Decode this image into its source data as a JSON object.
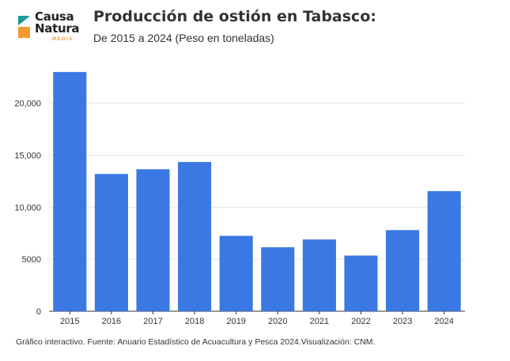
{
  "brand": {
    "line1": "Causa",
    "line2": "Natura",
    "sub": "MEDIA",
    "colors": {
      "teal": "#1a9c9a",
      "orange": "#f29a2e"
    }
  },
  "source": "Gráfico interactivo. Fuente: Anuario Estadístico de Acuacultura y Pesca 2024.Visualización: CNM.",
  "chart_data": {
    "type": "bar",
    "title": "Producción de ostión en Tabasco:",
    "subtitle": "De 2015 a 2024 (Peso en toneladas)",
    "categories": [
      "2015",
      "2016",
      "2017",
      "2018",
      "2019",
      "2020",
      "2021",
      "2022",
      "2023",
      "2024"
    ],
    "values": [
      23000,
      13200,
      13650,
      14350,
      7250,
      6150,
      6900,
      5350,
      7800,
      11550
    ],
    "ylim": [
      0,
      24000
    ],
    "yticks": [
      0,
      5000,
      10000,
      15000,
      20000
    ],
    "ytick_labels": [
      "0",
      "5000",
      "10,000",
      "15,000",
      "20,000"
    ],
    "grid": true,
    "colors": {
      "bar": "#3b78e3",
      "grid": "#e6e6e6",
      "axis": "#333333"
    }
  }
}
